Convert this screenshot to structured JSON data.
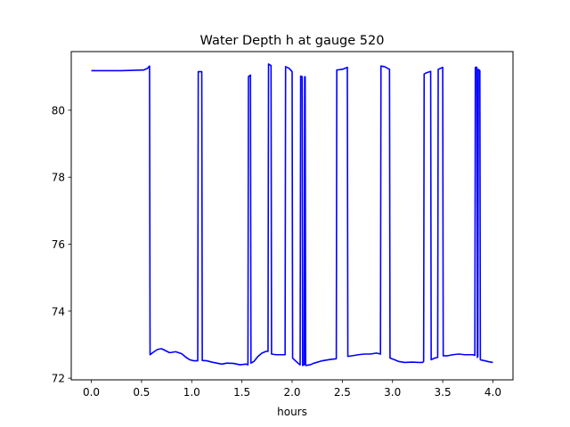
{
  "chart_data": {
    "type": "line",
    "title": "Water Depth h at gauge 520",
    "xlabel": "hours",
    "ylabel": "",
    "xlim": [
      -0.2,
      4.2
    ],
    "ylim": [
      71.95,
      81.75
    ],
    "xticks": [
      0.0,
      0.5,
      1.0,
      1.5,
      2.0,
      2.5,
      3.0,
      3.5,
      4.0
    ],
    "xtick_labels": [
      "0.0",
      "0.5",
      "1.0",
      "1.5",
      "2.0",
      "2.5",
      "3.0",
      "3.5",
      "4.0"
    ],
    "yticks": [
      72,
      74,
      76,
      78,
      80
    ],
    "ytick_labels": [
      "72",
      "74",
      "76",
      "78",
      "80"
    ],
    "grid": false,
    "series": [
      {
        "color": "#0000ff",
        "points": [
          [
            0.0,
            81.18
          ],
          [
            0.3,
            81.18
          ],
          [
            0.52,
            81.2
          ],
          [
            0.56,
            81.25
          ],
          [
            0.58,
            81.32
          ],
          [
            0.585,
            72.7
          ],
          [
            0.62,
            72.78
          ],
          [
            0.66,
            72.86
          ],
          [
            0.7,
            72.88
          ],
          [
            0.74,
            72.82
          ],
          [
            0.78,
            72.76
          ],
          [
            0.84,
            72.79
          ],
          [
            0.9,
            72.73
          ],
          [
            0.94,
            72.63
          ],
          [
            0.98,
            72.55
          ],
          [
            1.02,
            72.52
          ],
          [
            1.06,
            72.52
          ],
          [
            1.065,
            81.15
          ],
          [
            1.1,
            81.15
          ],
          [
            1.105,
            72.53
          ],
          [
            1.15,
            72.52
          ],
          [
            1.2,
            72.48
          ],
          [
            1.25,
            72.45
          ],
          [
            1.3,
            72.42
          ],
          [
            1.35,
            72.45
          ],
          [
            1.42,
            72.44
          ],
          [
            1.48,
            72.4
          ],
          [
            1.54,
            72.42
          ],
          [
            1.56,
            72.4
          ],
          [
            1.565,
            81.0
          ],
          [
            1.585,
            81.05
          ],
          [
            1.59,
            72.45
          ],
          [
            1.62,
            72.5
          ],
          [
            1.66,
            72.65
          ],
          [
            1.7,
            72.75
          ],
          [
            1.74,
            72.8
          ],
          [
            1.76,
            72.8
          ],
          [
            1.765,
            81.38
          ],
          [
            1.79,
            81.33
          ],
          [
            1.795,
            72.72
          ],
          [
            1.84,
            72.7
          ],
          [
            1.93,
            72.7
          ],
          [
            1.935,
            81.3
          ],
          [
            1.97,
            81.25
          ],
          [
            2.0,
            81.15
          ],
          [
            2.005,
            72.6
          ],
          [
            2.04,
            72.5
          ],
          [
            2.07,
            72.42
          ],
          [
            2.08,
            72.4
          ],
          [
            2.085,
            81.02
          ],
          [
            2.1,
            81.0
          ],
          [
            2.105,
            72.38
          ],
          [
            2.12,
            72.4
          ],
          [
            2.125,
            81.0
          ],
          [
            2.13,
            81.0
          ],
          [
            2.135,
            72.38
          ],
          [
            2.18,
            72.4
          ],
          [
            2.22,
            72.45
          ],
          [
            2.3,
            72.52
          ],
          [
            2.38,
            72.56
          ],
          [
            2.44,
            72.58
          ],
          [
            2.445,
            81.2
          ],
          [
            2.5,
            81.22
          ],
          [
            2.55,
            81.28
          ],
          [
            2.555,
            72.65
          ],
          [
            2.6,
            72.67
          ],
          [
            2.66,
            72.7
          ],
          [
            2.72,
            72.72
          ],
          [
            2.78,
            72.72
          ],
          [
            2.84,
            72.75
          ],
          [
            2.88,
            72.72
          ],
          [
            2.885,
            81.32
          ],
          [
            2.92,
            81.3
          ],
          [
            2.97,
            81.22
          ],
          [
            2.975,
            72.6
          ],
          [
            3.02,
            72.55
          ],
          [
            3.06,
            72.5
          ],
          [
            3.12,
            72.47
          ],
          [
            3.2,
            72.48
          ],
          [
            3.26,
            72.47
          ],
          [
            3.3,
            72.47
          ],
          [
            3.31,
            72.5
          ],
          [
            3.315,
            81.08
          ],
          [
            3.34,
            81.12
          ],
          [
            3.38,
            81.16
          ],
          [
            3.385,
            72.55
          ],
          [
            3.42,
            72.6
          ],
          [
            3.45,
            72.62
          ],
          [
            3.455,
            81.22
          ],
          [
            3.5,
            81.28
          ],
          [
            3.505,
            72.67
          ],
          [
            3.55,
            72.67
          ],
          [
            3.6,
            72.7
          ],
          [
            3.66,
            72.72
          ],
          [
            3.72,
            72.7
          ],
          [
            3.8,
            72.7
          ],
          [
            3.82,
            72.68
          ],
          [
            3.825,
            81.28
          ],
          [
            3.84,
            81.28
          ],
          [
            3.845,
            72.62
          ],
          [
            3.85,
            72.65
          ],
          [
            3.855,
            81.22
          ],
          [
            3.87,
            81.18
          ],
          [
            3.875,
            72.55
          ],
          [
            3.92,
            72.52
          ],
          [
            3.96,
            72.49
          ],
          [
            4.0,
            72.47
          ]
        ]
      }
    ]
  }
}
